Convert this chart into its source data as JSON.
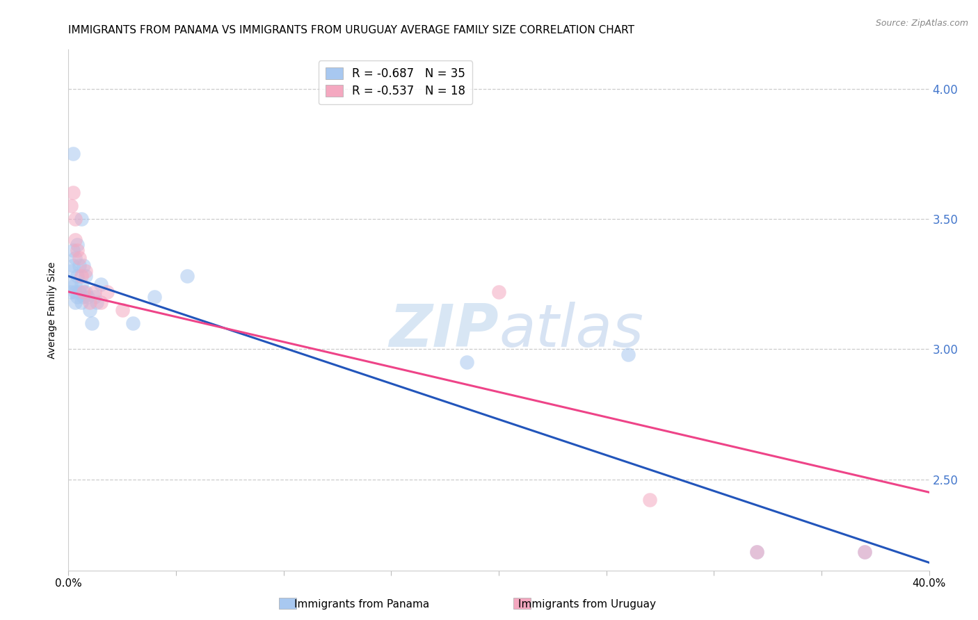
{
  "title": "IMMIGRANTS FROM PANAMA VS IMMIGRANTS FROM URUGUAY AVERAGE FAMILY SIZE CORRELATION CHART",
  "source": "Source: ZipAtlas.com",
  "ylabel": "Average Family Size",
  "xmin": 0.0,
  "xmax": 0.4,
  "ymin": 2.15,
  "ymax": 4.15,
  "yticks": [
    2.5,
    3.0,
    3.5,
    4.0
  ],
  "xticks": [
    0.0,
    0.05,
    0.1,
    0.15,
    0.2,
    0.25,
    0.3,
    0.35,
    0.4
  ],
  "panama_color": "#A8C8F0",
  "uruguay_color": "#F4A8C0",
  "panama_R": -0.687,
  "panama_N": 35,
  "uruguay_R": -0.537,
  "uruguay_N": 18,
  "line_blue": "#2255BB",
  "line_pink": "#EE4488",
  "panama_x": [
    0.001,
    0.001,
    0.001,
    0.002,
    0.002,
    0.002,
    0.003,
    0.003,
    0.003,
    0.003,
    0.004,
    0.004,
    0.004,
    0.005,
    0.005,
    0.006,
    0.006,
    0.006,
    0.007,
    0.007,
    0.008,
    0.008,
    0.009,
    0.01,
    0.011,
    0.012,
    0.013,
    0.015,
    0.03,
    0.04,
    0.055,
    0.185,
    0.26,
    0.32,
    0.37
  ],
  "panama_y": [
    3.22,
    3.25,
    3.3,
    3.32,
    3.38,
    3.75,
    3.18,
    3.22,
    3.25,
    3.35,
    3.2,
    3.28,
    3.4,
    3.22,
    3.32,
    3.18,
    3.25,
    3.5,
    3.2,
    3.32,
    3.22,
    3.28,
    3.2,
    3.15,
    3.1,
    3.2,
    3.18,
    3.25,
    3.1,
    3.2,
    3.28,
    2.95,
    2.98,
    2.22,
    2.22
  ],
  "uruguay_x": [
    0.001,
    0.002,
    0.003,
    0.003,
    0.004,
    0.005,
    0.006,
    0.007,
    0.008,
    0.01,
    0.012,
    0.015,
    0.018,
    0.025,
    0.2,
    0.27,
    0.32,
    0.37
  ],
  "uruguay_y": [
    3.55,
    3.6,
    3.42,
    3.5,
    3.38,
    3.35,
    3.28,
    3.22,
    3.3,
    3.18,
    3.22,
    3.18,
    3.22,
    3.15,
    3.22,
    2.42,
    2.22,
    2.22
  ],
  "blue_line_x0": 0.0,
  "blue_line_y0": 3.28,
  "blue_line_x1": 0.4,
  "blue_line_y1": 2.18,
  "pink_line_x0": 0.0,
  "pink_line_y0": 3.22,
  "pink_line_x1": 0.4,
  "pink_line_y1": 2.45,
  "watermark_zip": "ZIP",
  "watermark_atlas": "atlas",
  "right_axis_color": "#4477CC",
  "title_fontsize": 11,
  "axis_label_fontsize": 10,
  "tick_fontsize": 11
}
